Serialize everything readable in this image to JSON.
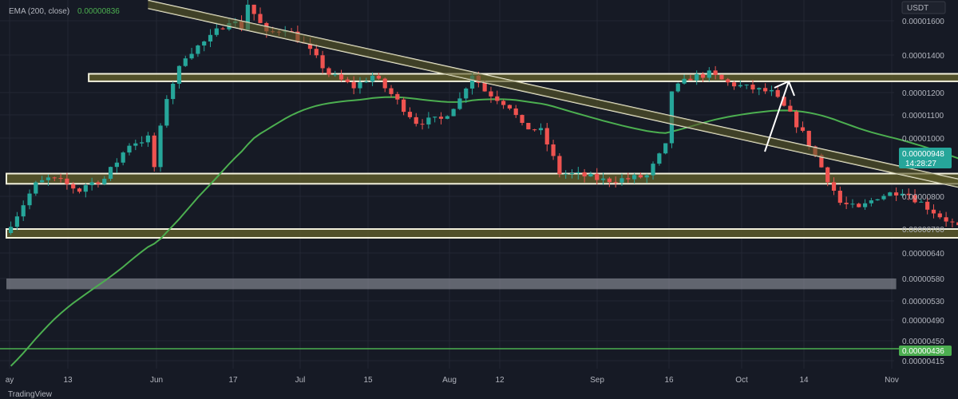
{
  "legend": {
    "ema_label": "EMA (200, close)",
    "ema_value": "0.00000836"
  },
  "currency_button": "USDT",
  "watermark": "TradingView",
  "colors": {
    "background": "#161a25",
    "bull": "#26a69a",
    "bear": "#ef5350",
    "ema": "#4caf50",
    "zone_fill": "#5c5a2a",
    "zone_stroke": "#f3f1dc",
    "grid": "#232734"
  },
  "chart_data": {
    "type": "candlestick",
    "y_ticks": [
      "0.00001600",
      "0.00001400",
      "0.00001200",
      "0.00001100",
      "0.00001000",
      "0.00000800",
      "0.00000700",
      "0.00000640",
      "0.00000580",
      "0.00000530",
      "0.00000490",
      "0.00000450",
      "0.00000415"
    ],
    "x_ticks": [
      "ay",
      "13",
      "Jun",
      "17",
      "Jul",
      "15",
      "Aug",
      "12",
      "Sep",
      "16",
      "Oct",
      "14",
      "Nov"
    ],
    "price_label": {
      "value": "0.00000948",
      "timer": "14:28:27"
    },
    "support_label": {
      "value": "0.00000436"
    },
    "ema_last": 8.36e-06,
    "zones": [
      {
        "name": "upper-resistance",
        "low": 1.26e-05,
        "high": 1.3e-05,
        "from": "May 19",
        "to": "Oct 13"
      },
      {
        "name": "middle-support",
        "low": 8.43e-06,
        "high": 8.78e-06,
        "from": "May 04",
        "to": "Oct 13"
      },
      {
        "name": "lower-support",
        "low": 6.78e-06,
        "high": 7e-06,
        "from": "May 04",
        "to": "Oct 13"
      },
      {
        "name": "gray-band",
        "low": 5.56e-06,
        "high": 5.8e-06,
        "from": "May 04",
        "to": "Sep 25"
      }
    ],
    "trendline": {
      "from": {
        "date": "May 28",
        "price": 1.7e-05
      },
      "to": {
        "date": "Oct 24",
        "price": 7.6e-06
      }
    },
    "horizontal_line": 4.36e-06
  }
}
